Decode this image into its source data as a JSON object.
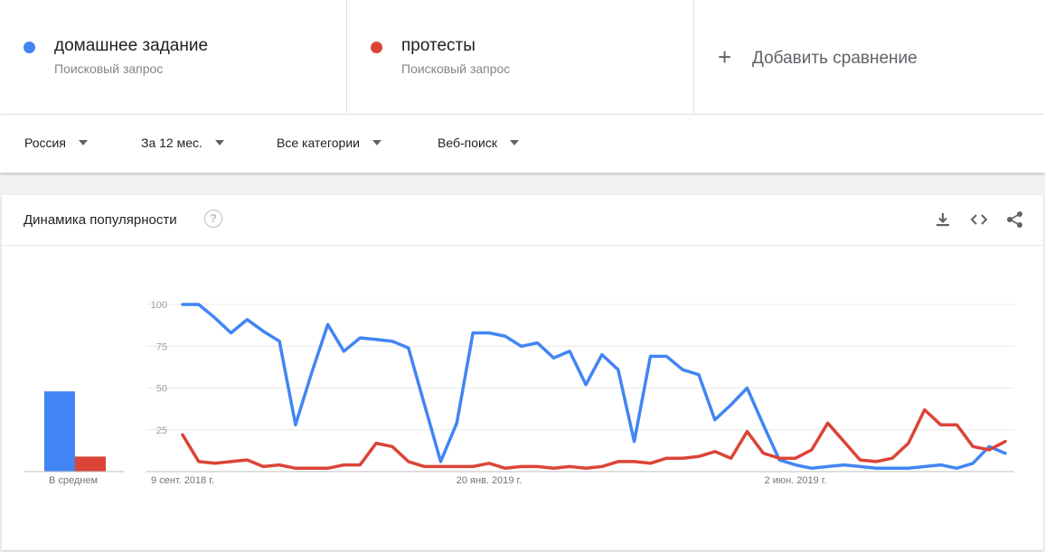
{
  "terms": [
    {
      "name": "домашнее задание",
      "type": "Поисковый запрос",
      "color": "#4285f4"
    },
    {
      "name": "протесты",
      "type": "Поисковый запрос",
      "color": "#db4437"
    }
  ],
  "add_compare_label": "Добавить сравнение",
  "filters": {
    "region": "Россия",
    "period": "За 12 мес.",
    "category": "Все категории",
    "search_type": "Веб-поиск"
  },
  "card": {
    "title": "Динамика популярности",
    "help_icon": "?",
    "average_label": "В среднем"
  },
  "chart_data": {
    "type": "line",
    "ylim": [
      0,
      100
    ],
    "yticks": [
      25,
      50,
      75,
      100
    ],
    "x_tick_labels": [
      {
        "label": "9 сент. 2018 г.",
        "index": 0
      },
      {
        "label": "20 янв. 2019 г.",
        "index": 19
      },
      {
        "label": "2 июн. 2019 г.",
        "index": 38
      }
    ],
    "grid": true,
    "series": [
      {
        "name": "домашнее задание",
        "color": "#4285f4",
        "average": 48,
        "values": [
          100,
          100,
          92,
          83,
          91,
          84,
          78,
          28,
          59,
          88,
          72,
          80,
          79,
          78,
          74,
          40,
          6,
          29,
          83,
          83,
          81,
          75,
          77,
          68,
          72,
          52,
          70,
          61,
          18,
          69,
          69,
          61,
          58,
          31,
          40,
          50,
          28,
          7,
          4,
          2,
          3,
          4,
          3,
          2,
          2,
          2,
          3,
          4,
          2,
          5,
          15,
          11
        ]
      },
      {
        "name": "протесты",
        "color": "#db4437",
        "average": 9,
        "values": [
          22,
          6,
          5,
          6,
          7,
          3,
          4,
          2,
          2,
          2,
          4,
          4,
          17,
          15,
          6,
          3,
          3,
          3,
          3,
          5,
          2,
          3,
          3,
          2,
          3,
          2,
          3,
          6,
          6,
          5,
          8,
          8,
          9,
          12,
          8,
          24,
          11,
          8,
          8,
          13,
          29,
          18,
          7,
          6,
          8,
          17,
          37,
          28,
          28,
          15,
          13,
          18
        ]
      }
    ]
  }
}
